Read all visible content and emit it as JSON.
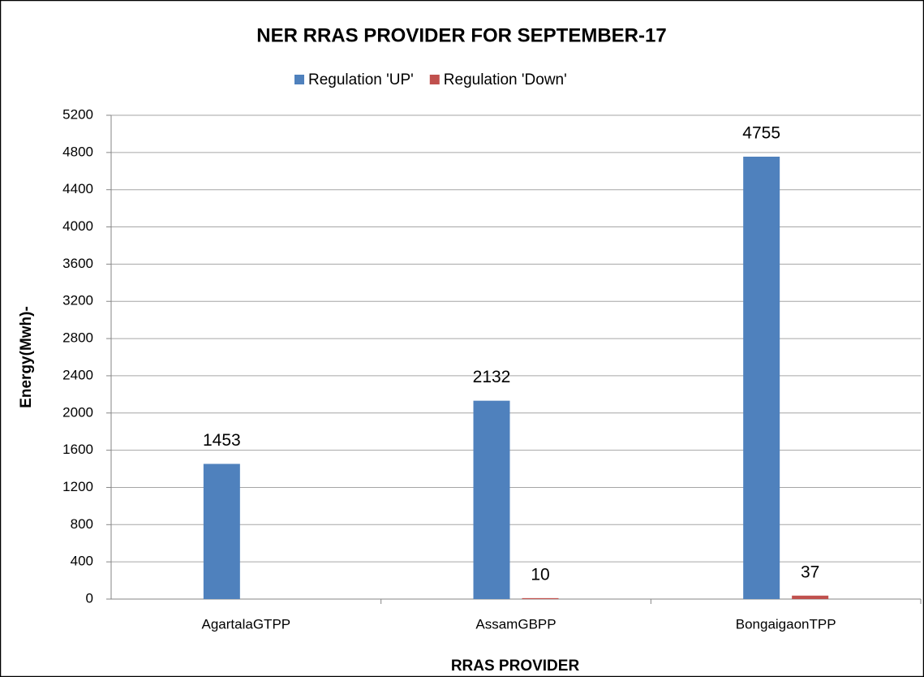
{
  "chart_data": {
    "type": "bar",
    "title": "NER RRAS PROVIDER FOR SEPTEMBER-17",
    "x_label": "RRAS PROVIDER",
    "y_label": "Energy(Mwh)-",
    "categories": [
      "AgartalaGTPP",
      "AssamGBPP",
      "BongaigaonTPP"
    ],
    "series": [
      {
        "name": "Regulation 'UP'",
        "color": "#4f81bd",
        "values": [
          1453,
          2132,
          4755
        ]
      },
      {
        "name": "Regulation 'Down'",
        "color": "#c0504d",
        "values": [
          null,
          10,
          37
        ]
      }
    ],
    "ylim": [
      0,
      5200
    ],
    "yticks": [
      0,
      400,
      800,
      1200,
      1600,
      2000,
      2400,
      2800,
      3200,
      3600,
      4000,
      4400,
      4800,
      5200
    ],
    "grid": true,
    "legend": "top"
  }
}
